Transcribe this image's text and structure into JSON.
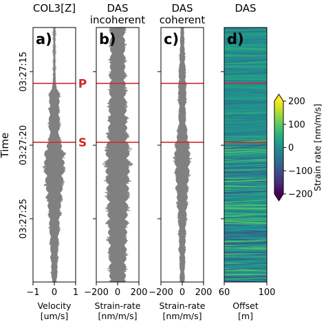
{
  "chart_data": [
    {
      "type": "line",
      "panel_label": "a)",
      "title": "COL3[Z]",
      "xlabel": "Velocity\n[um/s]",
      "ylabel": "Time",
      "xlim": [
        -1,
        1
      ],
      "xticks": [
        -1,
        0,
        1
      ],
      "xticklabels": [
        "−1",
        "0",
        "1"
      ],
      "yticklabels": [
        "03:27:15",
        "03:27:20",
        "03:27:25"
      ],
      "envelope": {
        "time_s": [
          0,
          1,
          2,
          3,
          3.8,
          4.6,
          5.5,
          6.5,
          7.4,
          7.8,
          8.5,
          9.5,
          10.5,
          11.5,
          12.5,
          13.5,
          14.5,
          15.5,
          16.5,
          17.3
        ],
        "amplitude": [
          0.05,
          0.05,
          0.05,
          0.06,
          0.08,
          0.32,
          0.3,
          0.34,
          0.28,
          0.38,
          0.58,
          0.62,
          0.52,
          0.46,
          0.36,
          0.3,
          0.26,
          0.22,
          0.18,
          0.15
        ]
      }
    },
    {
      "type": "line",
      "panel_label": "b)",
      "title": "DAS\nincoherent",
      "xlabel": "Strain-rate\n[nm/m/s]",
      "xlim": [
        -200,
        200
      ],
      "xticks": [
        -200,
        0,
        200
      ],
      "xticklabels": [
        "−200",
        "0",
        "200"
      ],
      "envelope": {
        "time_s": [
          0,
          1,
          2,
          3,
          3.8,
          4.6,
          5.5,
          6.5,
          7.4,
          7.8,
          8.5,
          9.5,
          10.5,
          11.5,
          12.5,
          13.5,
          14.5,
          15.5,
          16.5,
          17.3
        ],
        "amplitude": [
          85,
          88,
          90,
          92,
          95,
          100,
          105,
          110,
          118,
          130,
          140,
          145,
          138,
          130,
          120,
          115,
          110,
          105,
          100,
          95
        ]
      }
    },
    {
      "type": "line",
      "panel_label": "c)",
      "title": "DAS\ncoherent",
      "xlabel": "Strain-rate\n[nm/m/s]",
      "xlim": [
        -200,
        200
      ],
      "xticks": [
        -200,
        0,
        200
      ],
      "xticklabels": [
        "−200",
        "0",
        "200"
      ],
      "envelope": {
        "time_s": [
          0,
          1,
          2,
          3,
          3.8,
          4.6,
          5.5,
          6.5,
          7.4,
          7.8,
          8.5,
          9.5,
          10.5,
          11.5,
          12.5,
          13.5,
          14.5,
          15.5,
          16.5,
          17.3
        ],
        "amplitude": [
          20,
          25,
          32,
          40,
          45,
          50,
          40,
          45,
          65,
          75,
          95,
          90,
          75,
          65,
          55,
          45,
          40,
          35,
          30,
          28
        ]
      }
    },
    {
      "type": "heatmap",
      "panel_label": "d)",
      "title": "DAS",
      "xlabel": "Offset\n[m]",
      "xlim": [
        60,
        100
      ],
      "xticks": [
        60,
        100
      ],
      "xticklabels": [
        "60",
        "100"
      ],
      "colorbar": {
        "label": "Strain rate [nm/m/s]",
        "min": -200,
        "max": 200,
        "ticks": [
          200,
          100,
          0,
          -100,
          -200
        ],
        "ticklabels": [
          "200",
          "100",
          "0",
          "−100",
          "−200"
        ],
        "colormap": "viridis",
        "extend": "both"
      }
    }
  ],
  "picks": [
    {
      "label": "P",
      "time_s": 3.8
    },
    {
      "label": "S",
      "time_s": 7.8
    }
  ],
  "time_axis": {
    "start_s": 0,
    "end_s": 17.3,
    "tick_times_s": [
      3,
      8,
      13
    ]
  },
  "colors": {
    "waveform": "#808080",
    "pick_line": "#d62728",
    "pick_text": "#d62728",
    "viridis": [
      "#440154",
      "#482878",
      "#3e4989",
      "#31688e",
      "#26828e",
      "#1f9e89",
      "#35b779",
      "#6ece58",
      "#b5de2b",
      "#fde725"
    ]
  }
}
